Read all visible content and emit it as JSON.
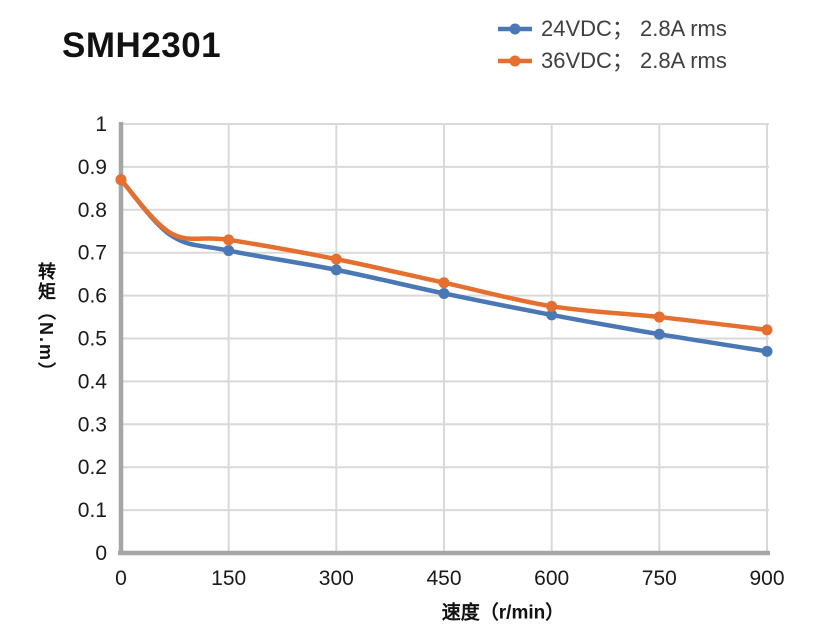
{
  "title": "SMH2301",
  "legend": {
    "items": [
      {
        "label": "24VDC； 2.8A rms",
        "color": "#4A78B4"
      },
      {
        "label": "36VDC； 2.8A rms",
        "color": "#E56F2E"
      }
    ]
  },
  "axes": {
    "x_title": "速度（r/min）",
    "y_title": "转矩（N.m）"
  },
  "chart_data": {
    "type": "line",
    "title": "SMH2301",
    "xlabel": "速度（r/min）",
    "ylabel": "转矩（N.m）",
    "xlim": [
      0,
      900
    ],
    "ylim": [
      0,
      1
    ],
    "x_ticks": [
      0,
      150,
      300,
      450,
      600,
      750,
      900
    ],
    "y_ticks": [
      0,
      0.1,
      0.2,
      0.3,
      0.4,
      0.5,
      0.6,
      0.7,
      0.8,
      0.9,
      1
    ],
    "grid": true,
    "legend_position": "top-right",
    "gridline_color": "#D9D9D9",
    "axis_line_color": "#A6A6A6",
    "line_style": "smooth",
    "series": [
      {
        "name": "24VDC； 2.8A rms",
        "color": "#4A78B4",
        "x": [
          0,
          70,
          150,
          300,
          450,
          600,
          750,
          900
        ],
        "y": [
          0.87,
          0.74,
          0.705,
          0.66,
          0.605,
          0.555,
          0.51,
          0.47
        ],
        "markers_at_x": [
          0,
          150,
          300,
          450,
          600,
          750,
          900
        ]
      },
      {
        "name": "36VDC； 2.8A rms",
        "color": "#E56F2E",
        "x": [
          0,
          70,
          150,
          300,
          450,
          600,
          750,
          900
        ],
        "y": [
          0.87,
          0.745,
          0.73,
          0.685,
          0.63,
          0.575,
          0.55,
          0.52
        ],
        "markers_at_x": [
          0,
          150,
          300,
          450,
          600,
          750,
          900
        ]
      }
    ]
  }
}
